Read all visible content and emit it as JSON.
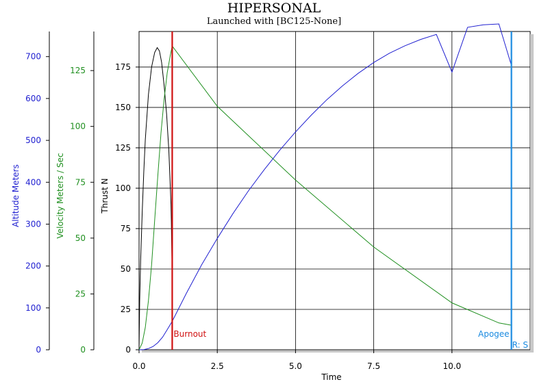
{
  "chart_data": {
    "type": "line",
    "title": "HIPERSONAL",
    "subtitle": "Launched with [BC125-None]",
    "xlabel": "Time",
    "xlim": [
      0,
      12.5
    ],
    "xticks": [
      "0.0",
      "2.5",
      "5.0",
      "7.5",
      "10.0"
    ],
    "grid": true,
    "axes": {
      "altitude": {
        "label": "Altitude Meters",
        "color": "#1f1fd0",
        "ylim": [
          0,
          760
        ],
        "ticks": [
          "0",
          "100",
          "200",
          "300",
          "400",
          "500",
          "600",
          "700"
        ]
      },
      "velocity": {
        "label": "Velocity Meters / Sec",
        "color": "#1f8f1f",
        "ylim": [
          0,
          142.5
        ],
        "ticks": [
          "0",
          "25",
          "50",
          "75",
          "100",
          "125"
        ]
      },
      "thrust": {
        "label": "Thrust N",
        "color": "#000000",
        "ylim": [
          0,
          197
        ],
        "ticks": [
          "0",
          "25",
          "50",
          "75",
          "100",
          "125",
          "150",
          "175"
        ]
      }
    },
    "series": [
      {
        "axis": "thrust",
        "color": "#000000",
        "x": [
          0.0,
          0.02,
          0.05,
          0.1,
          0.15,
          0.2,
          0.3,
          0.4,
          0.5,
          0.58,
          0.65,
          0.72,
          0.8,
          0.88,
          0.95,
          1.0,
          1.02,
          1.03,
          1.04,
          1.05,
          1.06
        ],
        "y": [
          0,
          30,
          55,
          85,
          110,
          130,
          158,
          175,
          184,
          187,
          185,
          178,
          164,
          146,
          124,
          100,
          90,
          80,
          68,
          56,
          0
        ]
      },
      {
        "axis": "velocity",
        "color": "#1f8f1f",
        "x": [
          0.0,
          0.1,
          0.2,
          0.3,
          0.4,
          0.5,
          0.6,
          0.7,
          0.8,
          0.9,
          1.0,
          1.06,
          2.5,
          5.0,
          7.5,
          10.0,
          11.5,
          11.9
        ],
        "y": [
          0,
          3,
          10,
          22,
          38,
          58,
          78,
          97,
          112,
          124,
          132,
          136,
          109,
          76,
          46,
          21,
          12,
          11
        ]
      },
      {
        "axis": "altitude",
        "color": "#1f1fd0",
        "x": [
          0.0,
          0.15,
          0.3,
          0.45,
          0.6,
          0.75,
          0.9,
          1.06,
          1.5,
          2.0,
          2.5,
          3.0,
          3.5,
          4.0,
          4.5,
          5.0,
          5.5,
          6.0,
          6.5,
          7.0,
          7.5,
          8.0,
          8.5,
          9.0,
          9.5,
          10.0,
          10.5,
          11.0,
          11.5,
          11.9
        ],
        "y": [
          0,
          0.5,
          3,
          8,
          17,
          30,
          48,
          68,
          133,
          203,
          266,
          325,
          380,
          430,
          477,
          520,
          560,
          597,
          630,
          660,
          686,
          708,
          726,
          741,
          753,
          663,
          770,
          776,
          778,
          679
        ]
      }
    ],
    "events": [
      {
        "label": "Burnout",
        "x": 1.06,
        "color": "#d01010"
      },
      {
        "label": "Apogee",
        "x": 11.9,
        "color": "#1a8ae0"
      }
    ],
    "overflow_label": "R: S"
  }
}
